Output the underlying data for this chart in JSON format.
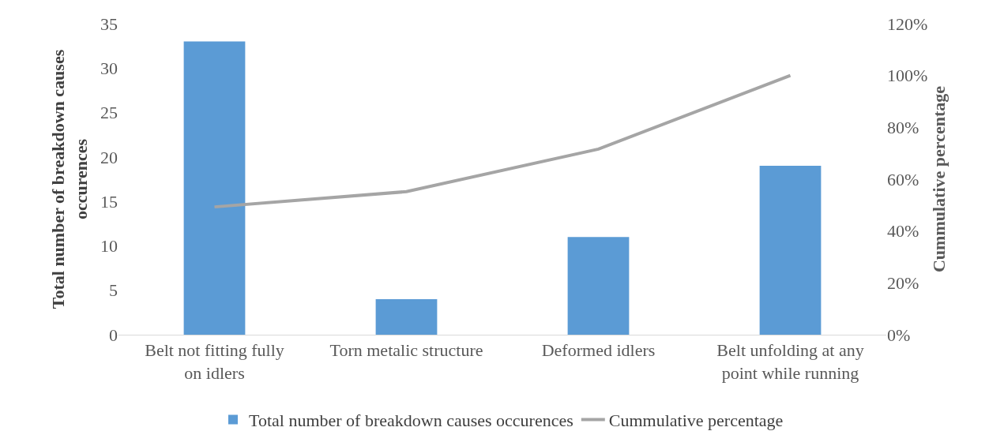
{
  "chart_data": {
    "type": "bar",
    "categories": [
      "Belt not fitting fully on idlers",
      "Torn metalic structure",
      "Deformed idlers",
      "Belt unfolding at any point while running"
    ],
    "series": [
      {
        "name": "Total number of breakdown causes occurences",
        "color": "#5b9bd5",
        "values": [
          33,
          4,
          11,
          19
        ]
      },
      {
        "name": "Cummulative percentage",
        "type": "line",
        "axis": "y2",
        "color": "#a5a5a5",
        "values": [
          49.3,
          55.2,
          71.6,
          100
        ]
      }
    ],
    "ylabel": "Total number of breakdown causes occurences",
    "y2label": "Cummulative percentage",
    "ylim": [
      0,
      35
    ],
    "yticks": [
      0,
      5,
      10,
      15,
      20,
      25,
      30,
      35
    ],
    "y2lim": [
      0,
      120
    ],
    "y2ticks": [
      {
        "value": 0,
        "label": "0%"
      },
      {
        "value": 20,
        "label": "20%"
      },
      {
        "value": 40,
        "label": "40%"
      },
      {
        "value": 60,
        "label": "60%"
      },
      {
        "value": 80,
        "label": "80%"
      },
      {
        "value": 100,
        "label": "100%"
      },
      {
        "value": 120,
        "label": "120%"
      }
    ],
    "grid": false,
    "legend": "bottom",
    "marker": "none",
    "line_style": "solid"
  }
}
